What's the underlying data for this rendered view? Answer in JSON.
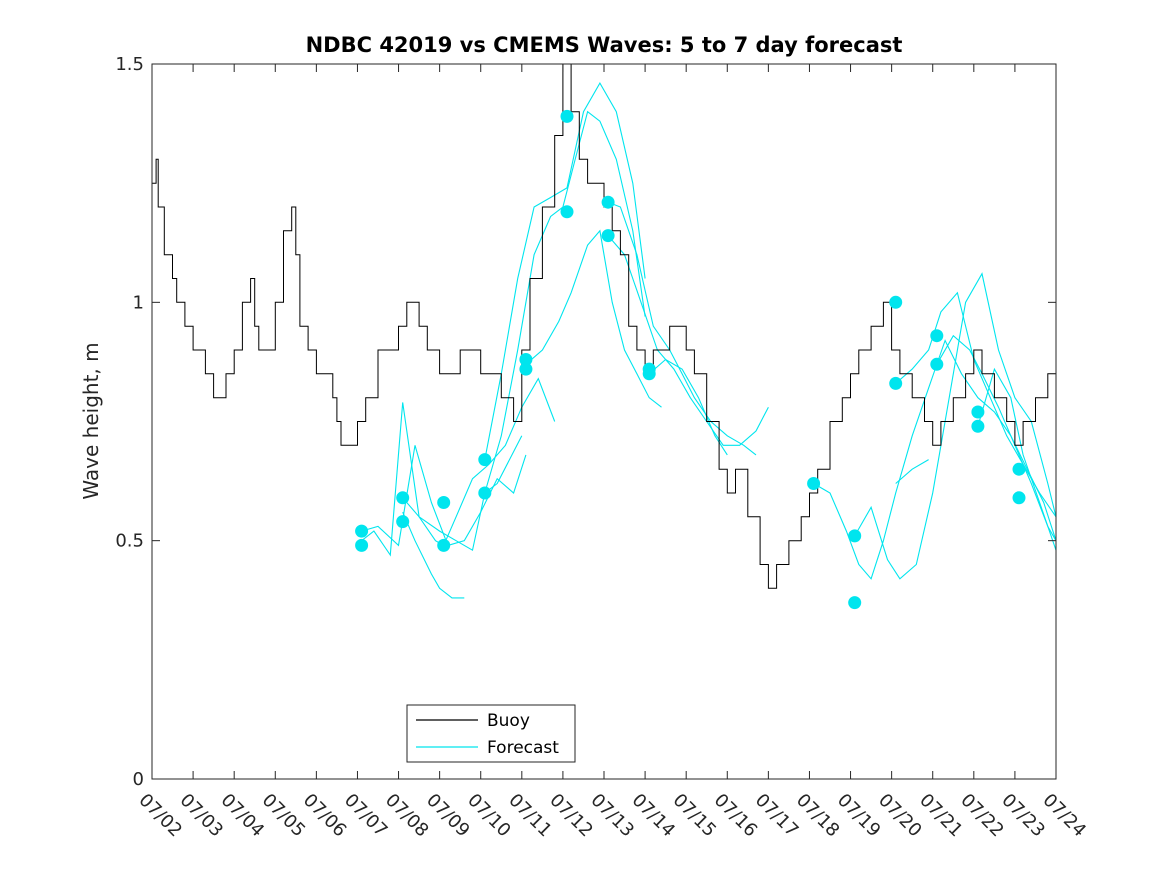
{
  "chart_data": {
    "type": "line",
    "title": "NDBC 42019 vs CMEMS Waves: 5 to 7 day forecast",
    "xlabel": "",
    "ylabel": "Wave height, m",
    "xlim": [
      "07/02",
      "07/24"
    ],
    "ylim": [
      0,
      1.5
    ],
    "x_ticks": [
      "07/02",
      "07/03",
      "07/04",
      "07/05",
      "07/06",
      "07/07",
      "07/08",
      "07/09",
      "07/10",
      "07/11",
      "07/12",
      "07/13",
      "07/14",
      "07/15",
      "07/16",
      "07/17",
      "07/18",
      "07/19",
      "07/20",
      "07/21",
      "07/22",
      "07/23",
      "07/24"
    ],
    "y_ticks": [
      0,
      0.5,
      1,
      1.5
    ],
    "y_tick_labels": [
      "0",
      "0.5",
      "1",
      "1.5"
    ],
    "grid": false,
    "legend": {
      "position": "bottom-left",
      "entries": [
        "Buoy",
        "Forecast"
      ]
    },
    "colors": {
      "buoy": "#000000",
      "forecast": "#00e5ee",
      "axes": "#262626"
    },
    "buoy": {
      "name": "Buoy",
      "x_day": [
        0.0,
        0.1,
        0.15,
        0.2,
        0.3,
        0.5,
        0.6,
        0.7,
        0.8,
        1.0,
        1.2,
        1.3,
        1.5,
        1.8,
        2.0,
        2.2,
        2.4,
        2.5,
        2.6,
        2.8,
        3.0,
        3.2,
        3.4,
        3.5,
        3.6,
        3.8,
        4.0,
        4.2,
        4.4,
        4.5,
        4.6,
        4.8,
        5.0,
        5.2,
        5.5,
        5.6,
        5.8,
        6.0,
        6.2,
        6.3,
        6.5,
        6.7,
        7.0,
        7.2,
        7.5,
        7.8,
        8.0,
        8.2,
        8.5,
        8.8,
        9.0,
        9.2,
        9.5,
        9.8,
        10.0,
        10.2,
        10.4,
        10.6,
        10.8,
        11.0,
        11.2,
        11.4,
        11.6,
        11.8,
        12.0,
        12.2,
        12.4,
        12.6,
        12.8,
        13.0,
        13.2,
        13.5,
        13.8,
        14.0,
        14.2,
        14.5,
        14.8,
        15.0,
        15.2,
        15.5,
        15.8,
        16.0,
        16.2,
        16.5,
        16.8,
        17.0,
        17.2,
        17.5,
        17.8,
        18.0,
        18.2,
        18.5,
        18.8,
        19.0,
        19.2,
        19.5,
        19.8,
        20.0,
        20.2,
        20.5,
        20.8,
        21.0,
        21.2,
        21.5,
        21.8,
        22.0
      ],
      "values": [
        1.25,
        1.3,
        1.2,
        1.2,
        1.1,
        1.05,
        1.0,
        1.0,
        0.95,
        0.9,
        0.9,
        0.85,
        0.8,
        0.85,
        0.9,
        1.0,
        1.05,
        0.95,
        0.9,
        0.9,
        1.0,
        1.15,
        1.2,
        1.1,
        0.95,
        0.9,
        0.85,
        0.85,
        0.8,
        0.75,
        0.7,
        0.7,
        0.75,
        0.8,
        0.9,
        0.9,
        0.9,
        0.95,
        1.0,
        1.0,
        0.95,
        0.9,
        0.85,
        0.85,
        0.9,
        0.9,
        0.85,
        0.85,
        0.8,
        0.75,
        0.9,
        1.05,
        1.2,
        1.35,
        1.5,
        1.4,
        1.3,
        1.25,
        1.25,
        1.2,
        1.15,
        1.1,
        0.95,
        0.9,
        0.85,
        0.9,
        0.9,
        0.95,
        0.95,
        0.9,
        0.85,
        0.75,
        0.65,
        0.6,
        0.65,
        0.55,
        0.45,
        0.4,
        0.45,
        0.5,
        0.55,
        0.6,
        0.65,
        0.75,
        0.8,
        0.85,
        0.9,
        0.95,
        1.0,
        0.9,
        0.85,
        0.8,
        0.75,
        0.7,
        0.75,
        0.8,
        0.85,
        0.9,
        0.85,
        0.8,
        0.75,
        0.7,
        0.75,
        0.8,
        0.85,
        0.8
      ]
    },
    "forecast_series": [
      {
        "x_day": [
          5.1,
          5.4,
          5.8,
          6.1,
          6.5,
          7.0,
          7.4,
          7.8,
          8.1,
          8.4,
          9.0
        ],
        "values": [
          0.5,
          0.52,
          0.47,
          0.79,
          0.55,
          0.52,
          0.5,
          0.48,
          0.6,
          0.62,
          0.72
        ]
      },
      {
        "x_day": [
          5.1,
          5.5,
          6.0,
          6.4,
          6.8,
          7.2,
          7.6,
          8.0,
          8.4,
          8.8,
          9.1
        ],
        "values": [
          0.52,
          0.53,
          0.49,
          0.7,
          0.58,
          0.49,
          0.5,
          0.56,
          0.63,
          0.6,
          0.68
        ]
      },
      {
        "x_day": [
          6.1,
          6.5,
          6.9,
          7.1,
          7.4,
          7.8,
          8.2,
          8.6,
          9.0,
          9.4,
          9.8
        ],
        "values": [
          0.59,
          0.55,
          0.5,
          0.49,
          0.55,
          0.63,
          0.66,
          0.7,
          0.78,
          0.84,
          0.75
        ]
      },
      {
        "x_day": [
          6.1,
          6.4,
          6.8,
          7.0,
          7.3,
          7.6
        ],
        "values": [
          0.56,
          0.5,
          0.43,
          0.4,
          0.38,
          0.38
        ]
      },
      {
        "x_day": [
          8.1,
          8.5,
          8.9,
          9.3,
          9.7,
          10.1,
          10.5,
          10.9,
          11.3,
          11.7,
          12.0
        ],
        "values": [
          0.67,
          0.85,
          1.05,
          1.2,
          1.22,
          1.24,
          1.4,
          1.46,
          1.4,
          1.25,
          1.05
        ]
      },
      {
        "x_day": [
          8.1,
          8.5,
          8.9,
          9.3,
          9.7,
          10.0,
          10.3,
          10.6,
          10.9,
          11.3,
          11.7,
          12.0
        ],
        "values": [
          0.6,
          0.72,
          0.9,
          1.1,
          1.18,
          1.2,
          1.3,
          1.4,
          1.38,
          1.3,
          1.15,
          0.97
        ]
      },
      {
        "x_day": [
          9.1,
          9.5,
          9.9,
          10.2,
          10.6,
          10.9,
          11.2,
          11.5,
          11.8,
          12.1,
          12.4
        ],
        "values": [
          0.87,
          0.9,
          0.96,
          1.02,
          1.12,
          1.15,
          1.0,
          0.9,
          0.85,
          0.8,
          0.78
        ]
      },
      {
        "x_day": [
          11.1,
          11.4,
          11.8,
          12.2,
          12.6,
          12.9,
          13.2,
          13.6,
          14.0,
          14.4,
          14.7
        ],
        "values": [
          1.21,
          1.2,
          1.1,
          0.95,
          0.9,
          0.85,
          0.8,
          0.75,
          0.72,
          0.7,
          0.68
        ]
      },
      {
        "x_day": [
          11.1,
          11.5,
          11.9,
          12.3,
          12.7,
          13.1,
          13.5,
          13.9,
          14.3,
          14.7,
          15.0
        ],
        "values": [
          1.14,
          1.1,
          1.0,
          0.9,
          0.86,
          0.8,
          0.75,
          0.7,
          0.7,
          0.73,
          0.78
        ]
      },
      {
        "x_day": [
          12.1,
          12.5,
          12.9,
          13.3,
          13.7,
          14.0
        ],
        "values": [
          0.85,
          0.88,
          0.86,
          0.8,
          0.72,
          0.68
        ]
      },
      {
        "x_day": [
          16.1,
          16.5,
          16.9,
          17.2,
          17.5,
          17.8,
          18.1,
          18.5,
          18.9,
          19.3,
          19.7,
          20.1,
          20.5,
          20.9,
          21.3,
          21.7,
          22.0
        ],
        "values": [
          0.62,
          0.6,
          0.52,
          0.45,
          0.42,
          0.5,
          0.6,
          0.72,
          0.82,
          0.92,
          0.85,
          0.8,
          0.77,
          0.72,
          0.65,
          0.58,
          0.5
        ]
      },
      {
        "x_day": [
          17.1,
          17.5,
          17.9,
          18.2,
          18.6,
          19.0,
          19.4,
          19.8,
          20.2,
          20.6,
          21.0,
          21.4,
          21.8,
          22.0
        ],
        "values": [
          0.51,
          0.57,
          0.46,
          0.42,
          0.45,
          0.6,
          0.8,
          1.0,
          1.06,
          0.9,
          0.8,
          0.75,
          0.62,
          0.55
        ]
      },
      {
        "x_day": [
          18.1,
          18.5,
          18.9,
          19.2,
          19.6,
          20.0,
          20.4,
          20.8,
          21.2,
          21.6,
          22.0
        ],
        "values": [
          0.83,
          0.86,
          0.9,
          0.98,
          1.02,
          0.88,
          0.8,
          0.72,
          0.66,
          0.6,
          0.55
        ]
      },
      {
        "x_day": [
          19.1,
          19.5,
          19.9,
          20.2,
          20.6,
          21.0,
          21.4,
          21.8,
          22.0
        ],
        "values": [
          0.87,
          0.93,
          0.9,
          0.85,
          0.78,
          0.7,
          0.62,
          0.53,
          0.5
        ]
      },
      {
        "x_day": [
          20.1,
          20.5,
          20.9,
          21.2,
          21.6,
          22.0
        ],
        "values": [
          0.74,
          0.86,
          0.8,
          0.68,
          0.58,
          0.48
        ]
      },
      {
        "x_day": [
          18.1,
          18.5,
          18.9
        ],
        "values": [
          0.62,
          0.65,
          0.67
        ]
      }
    ],
    "forecast_points": {
      "x_day": [
        5.1,
        5.1,
        6.1,
        6.1,
        7.1,
        7.1,
        8.1,
        8.1,
        9.1,
        9.1,
        10.1,
        10.1,
        11.1,
        11.1,
        12.1,
        12.1,
        16.1,
        17.1,
        17.1,
        18.1,
        18.1,
        19.1,
        19.1,
        20.1,
        20.1,
        21.1,
        21.1
      ],
      "values": [
        0.52,
        0.49,
        0.59,
        0.54,
        0.58,
        0.49,
        0.67,
        0.6,
        0.88,
        0.86,
        1.39,
        1.19,
        1.21,
        1.14,
        0.86,
        0.85,
        0.62,
        0.51,
        0.37,
        1.0,
        0.83,
        0.93,
        0.87,
        0.77,
        0.74,
        0.65,
        0.59
      ]
    }
  }
}
